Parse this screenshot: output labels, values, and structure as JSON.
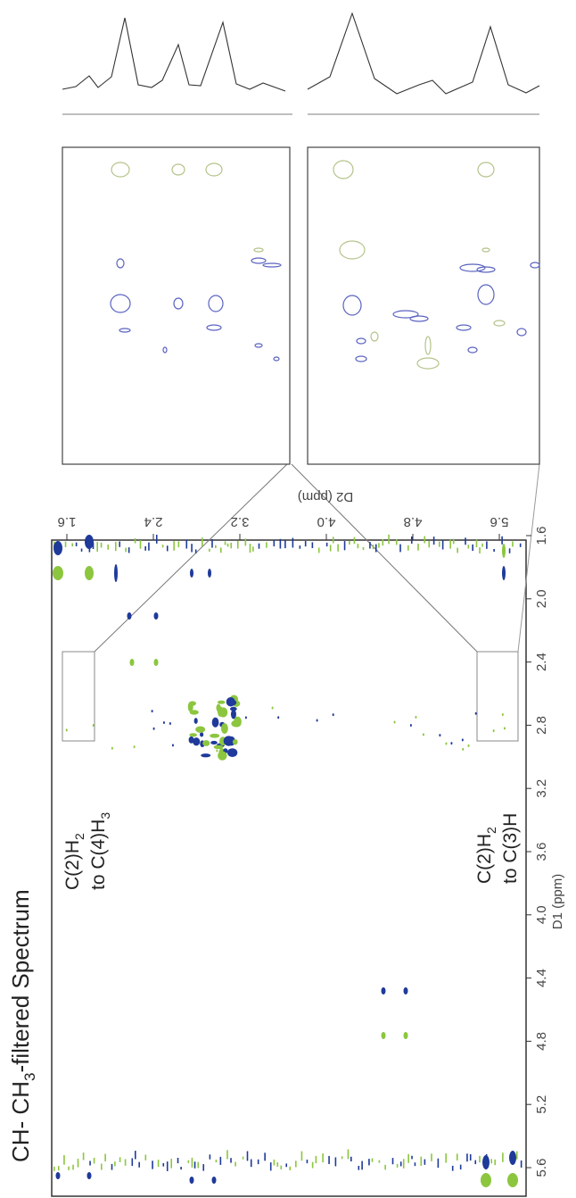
{
  "title": {
    "prefix": "CH- CH",
    "sub": "3",
    "suffix": "-filtered Spectrum"
  },
  "annotations": [
    {
      "line1": "C(2)H",
      "line1_sub": "2",
      "line2": "to C(4)H",
      "line2_sub": "3"
    },
    {
      "line1": "C(2)H",
      "line1_sub": "2",
      "line2": "to C(3)H"
    }
  ],
  "d1_axis": {
    "label": "D1 (ppm)",
    "ticks": [
      "1.6",
      "2.0",
      "2.4",
      "2.8",
      "3.2",
      "3.6",
      "4.0",
      "4.4",
      "4.8",
      "5.2",
      "5.6"
    ]
  },
  "d2_axis": {
    "label": "D2 (ppm)",
    "ticks": [
      "1.6",
      "2.4",
      "3.2",
      "4.0",
      "4.8",
      "5.6"
    ]
  }
}
